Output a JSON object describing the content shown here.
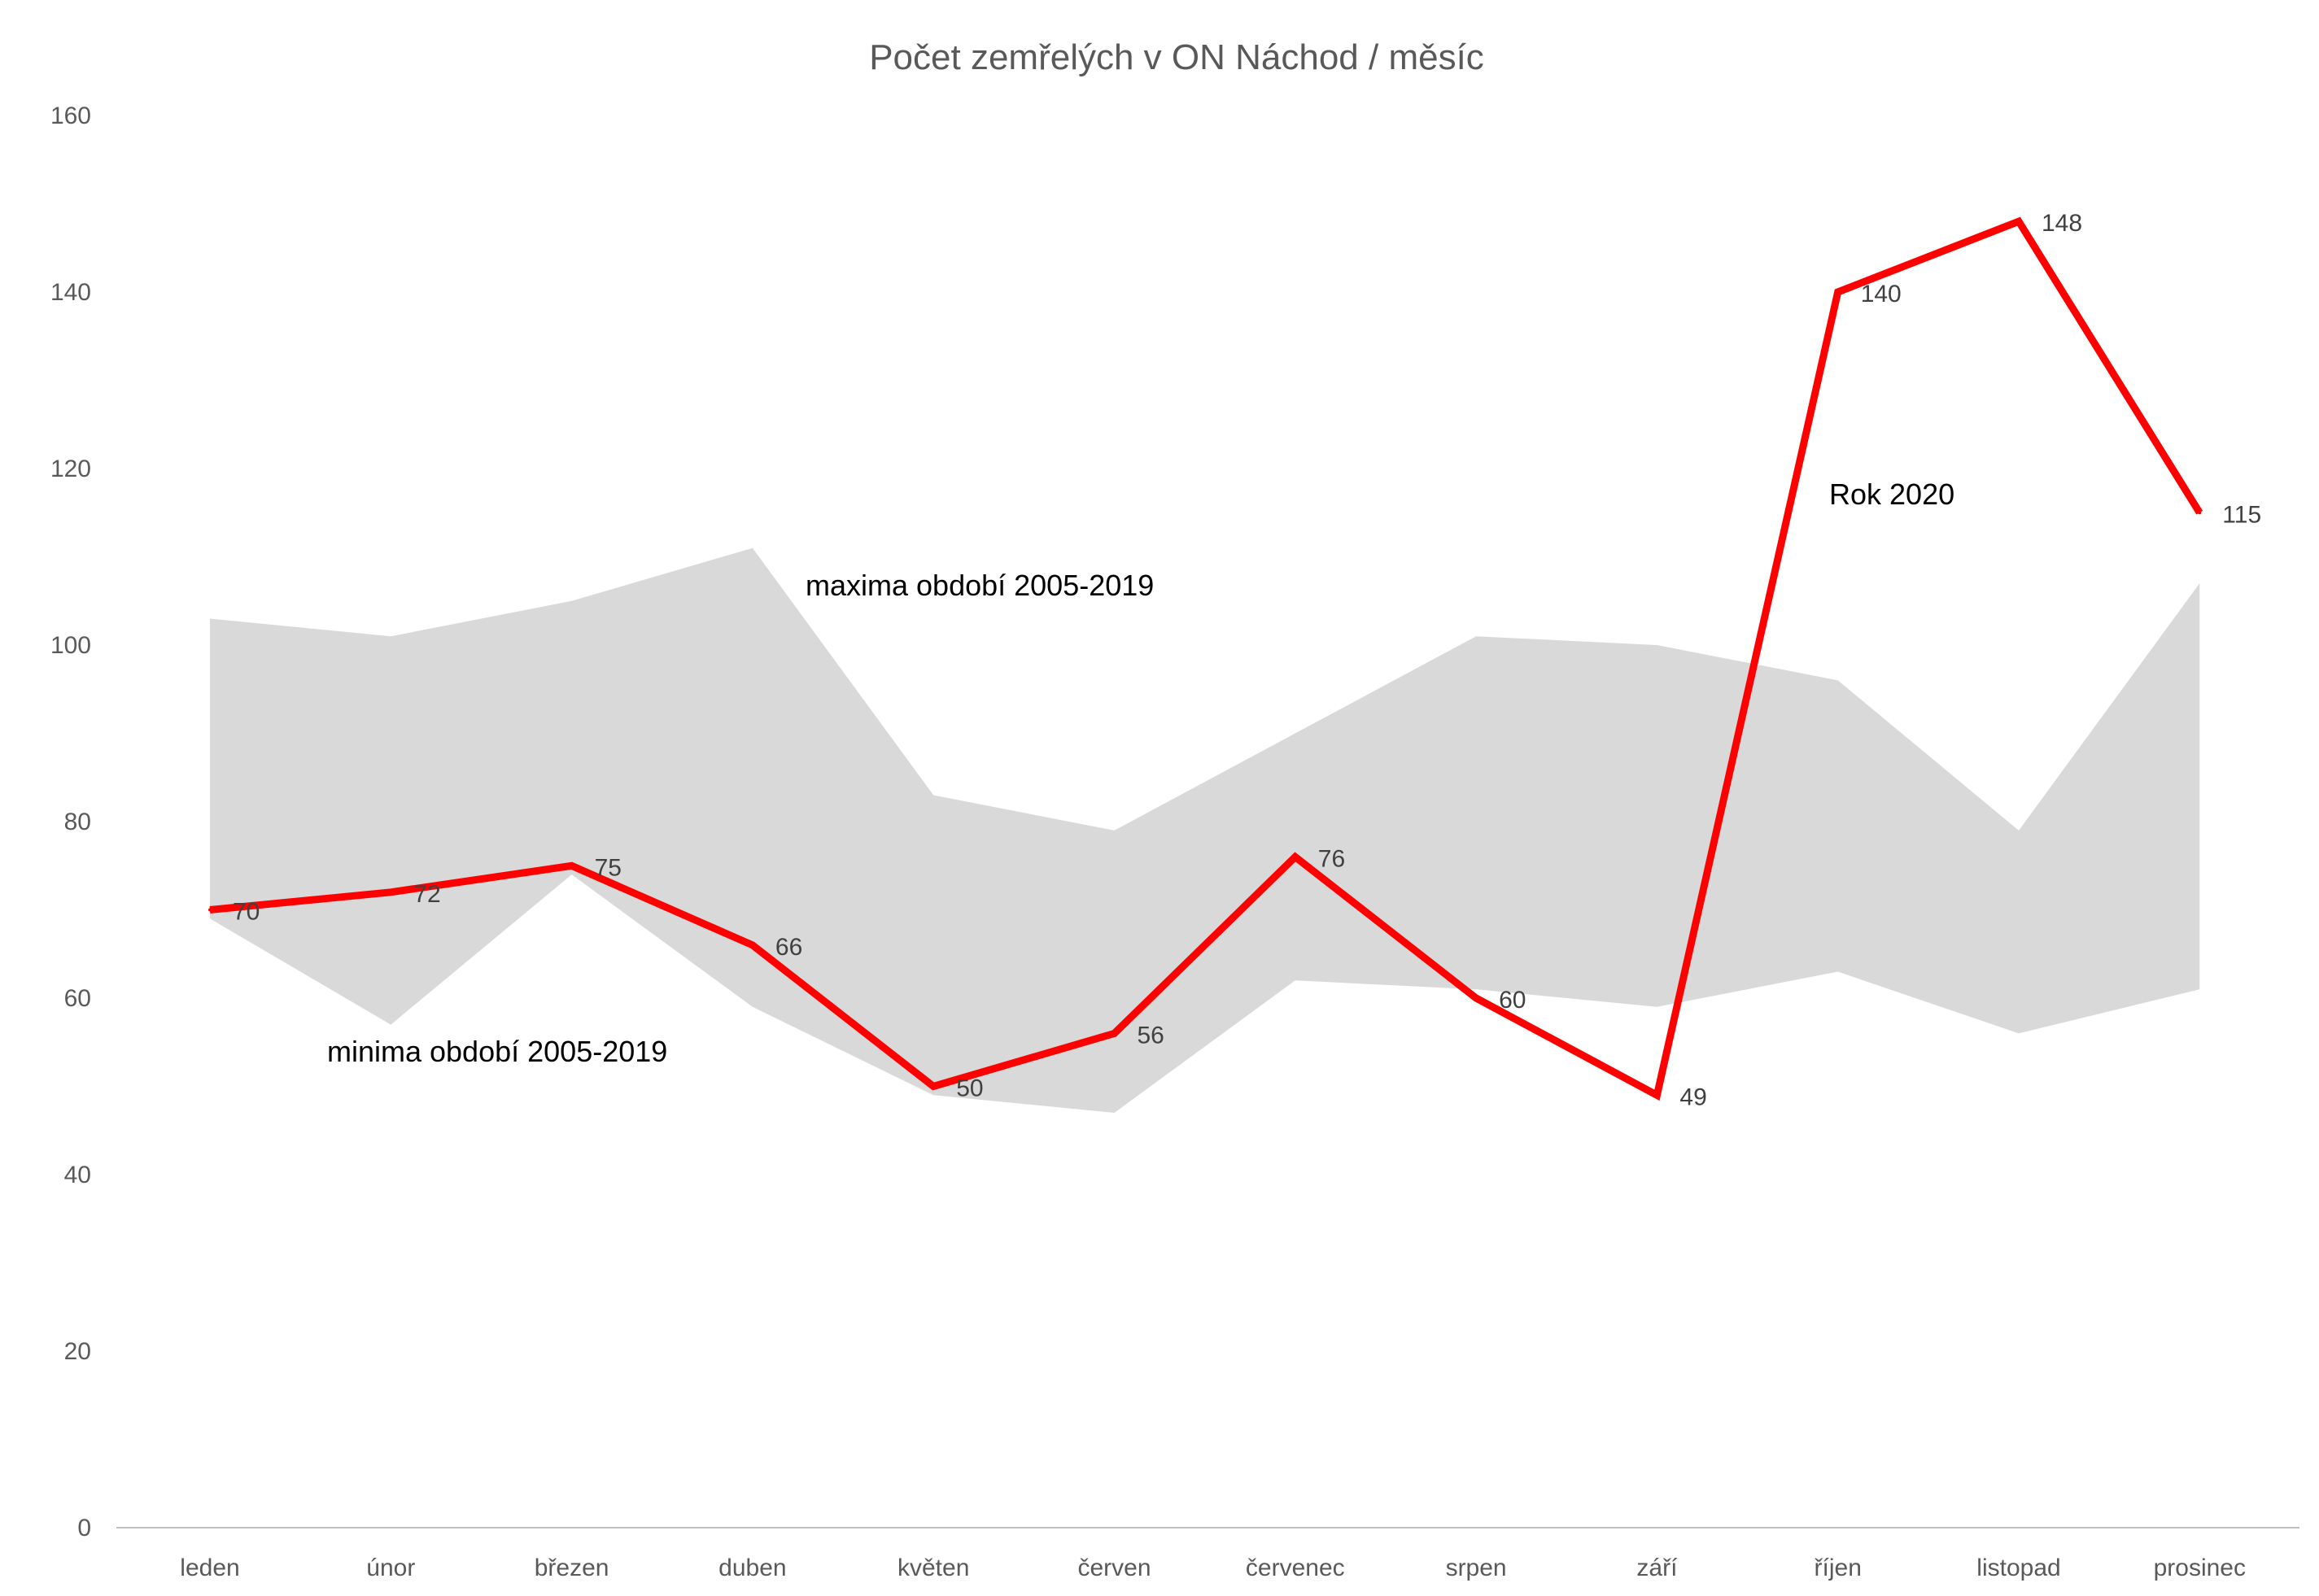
{
  "chart_data": {
    "type": "line",
    "title": "Počet zemřelých v ON Náchod / měsíc",
    "categories": [
      "leden",
      "únor",
      "březen",
      "duben",
      "květen",
      "červen",
      "červenec",
      "srpen",
      "září",
      "říjen",
      "listopad",
      "prosinec"
    ],
    "ylim": [
      0,
      160
    ],
    "yticks": [
      0,
      20,
      40,
      60,
      80,
      100,
      120,
      140,
      160
    ],
    "grid": false,
    "legend": "none",
    "band": {
      "max": [
        103,
        101,
        105,
        111,
        83,
        79,
        90,
        101,
        100,
        96,
        79,
        107
      ],
      "min": [
        69,
        57,
        74,
        59,
        49,
        47,
        62,
        61,
        59,
        63,
        56,
        61
      ],
      "color": "#d9d9d9"
    },
    "series": [
      {
        "name": "Rok 2020",
        "values": [
          70,
          72,
          75,
          66,
          50,
          56,
          76,
          60,
          49,
          140,
          148,
          115
        ],
        "color": "#ff0000"
      }
    ],
    "annotations": {
      "max_label": "maxima období 2005-2019",
      "min_label": "minima období 2005-2019",
      "series_label": "Rok 2020"
    },
    "axis_color": "#bfbfbf"
  }
}
